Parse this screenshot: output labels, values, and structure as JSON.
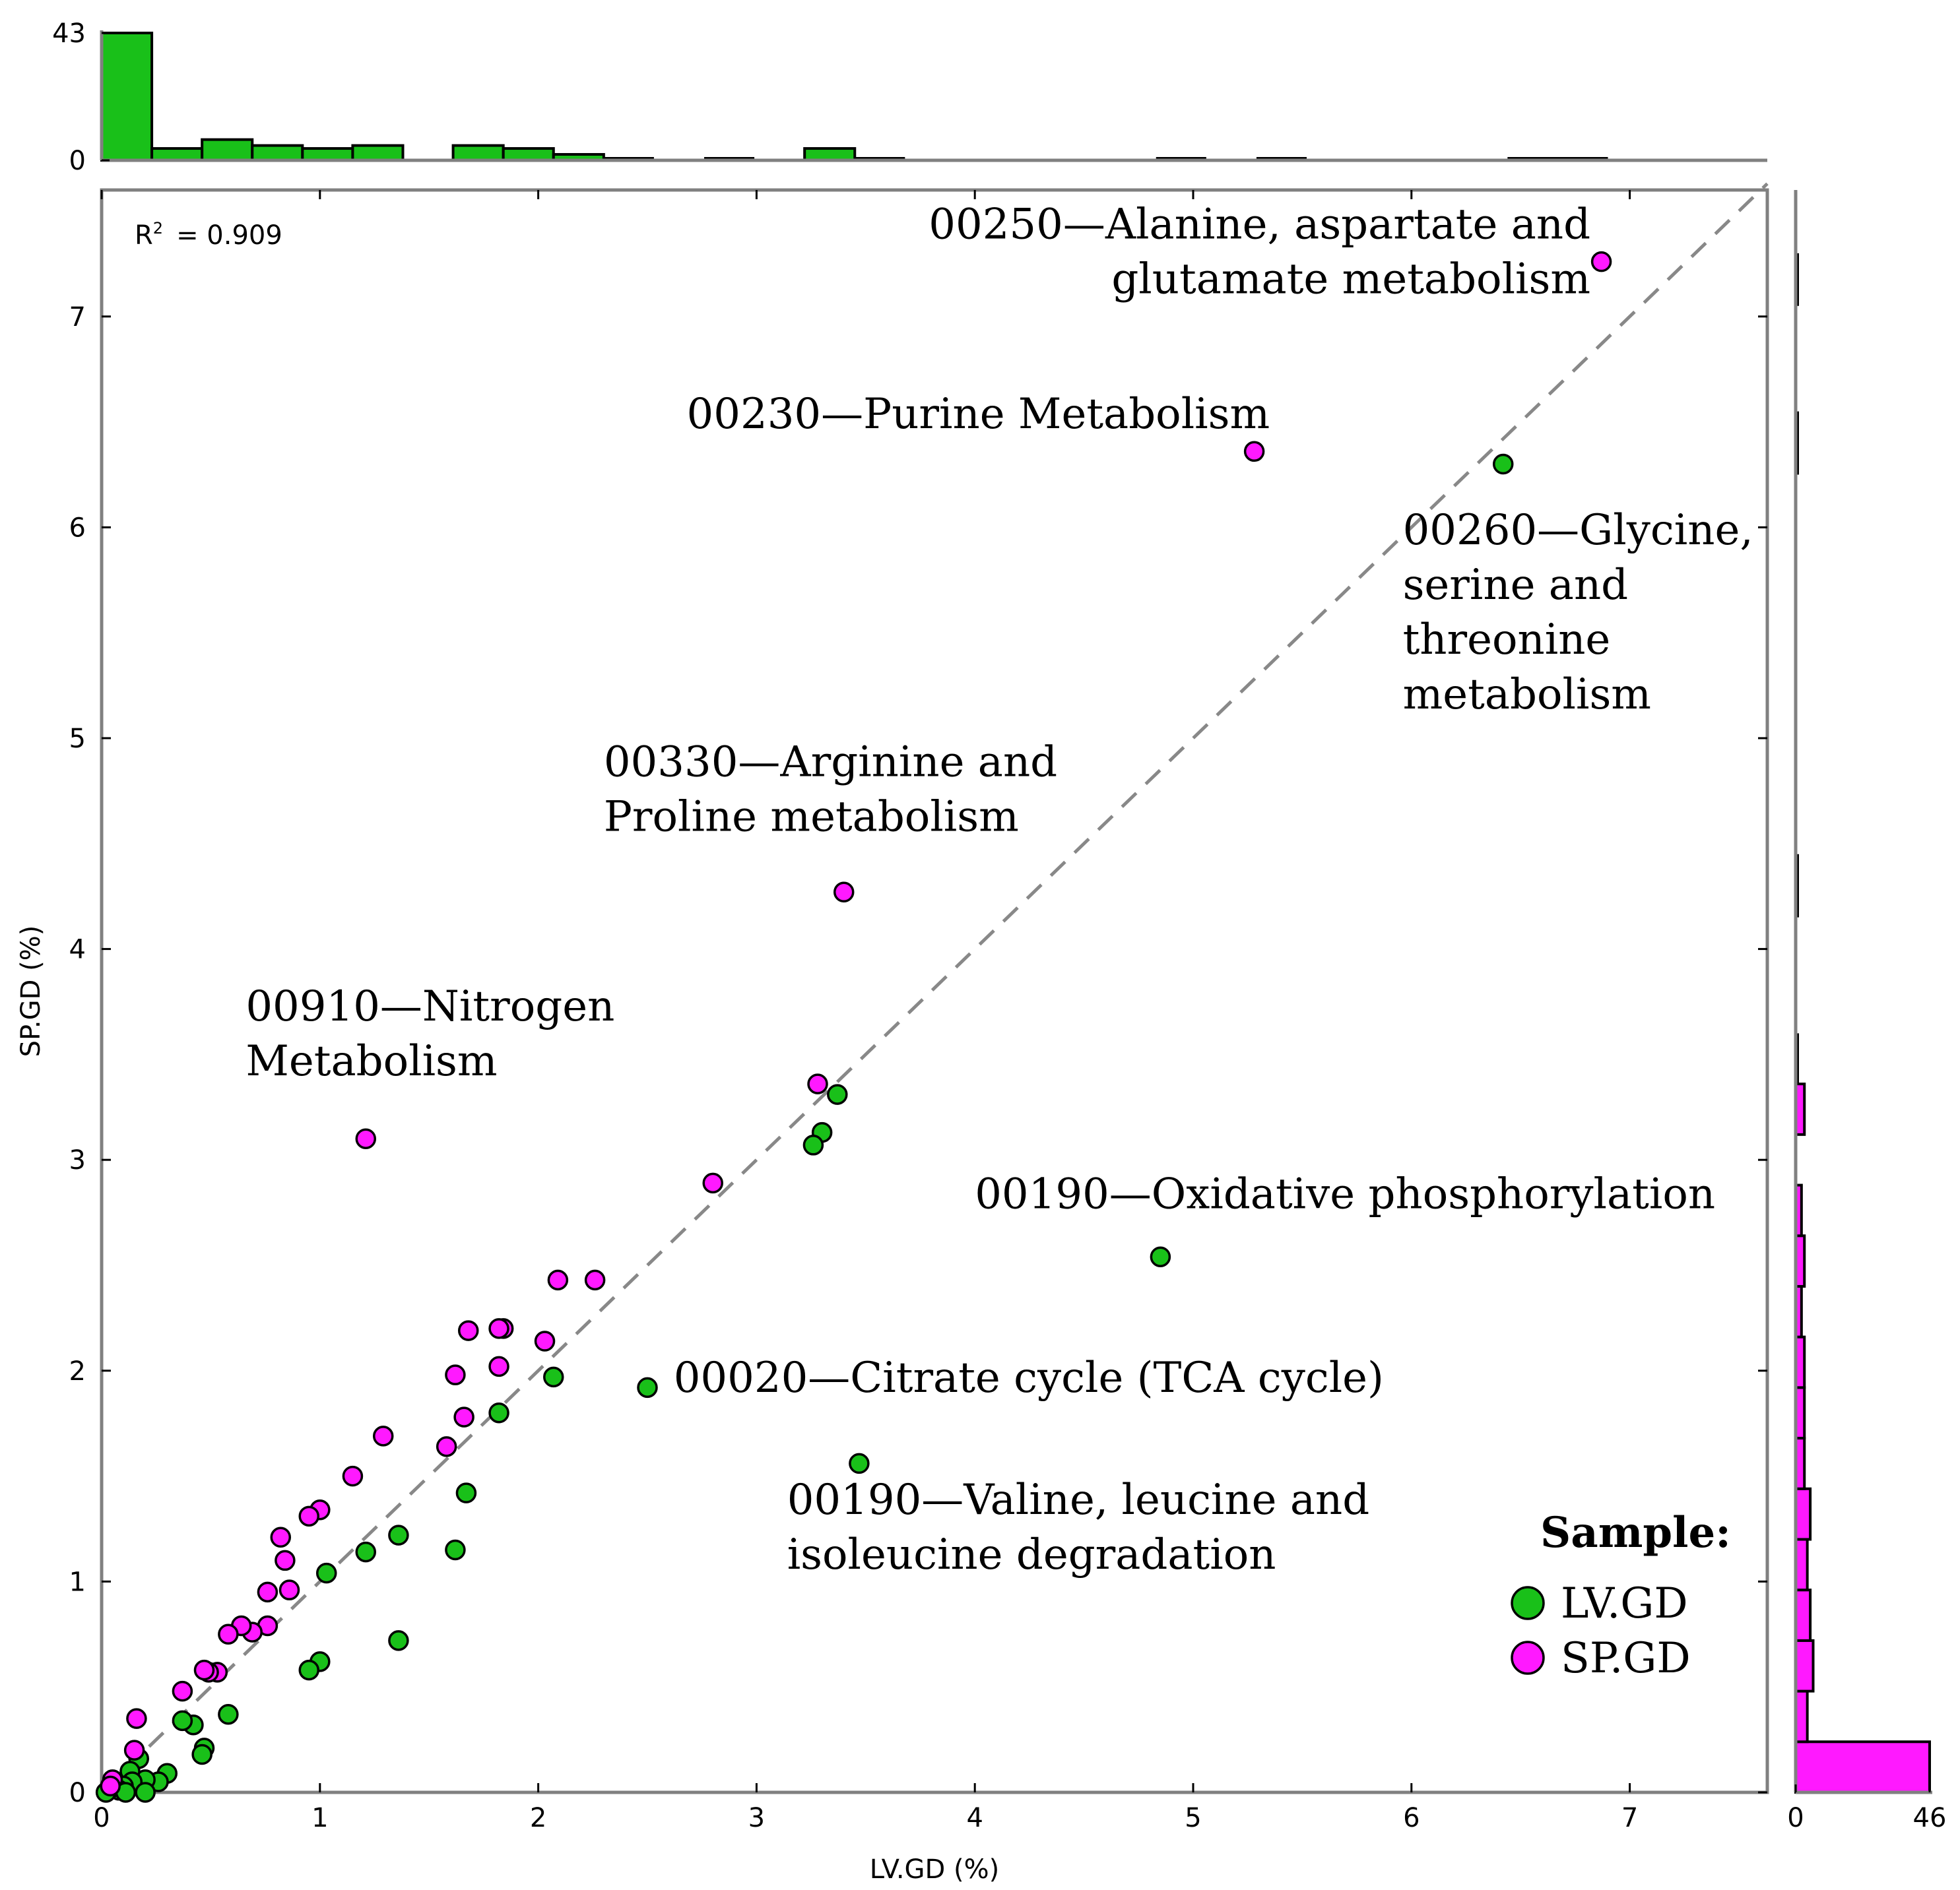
{
  "chart_data": {
    "type": "scatter",
    "xlabel": "LV.GD (%)",
    "ylabel": "SP.GD (%)",
    "xlim": [
      0,
      7.63
    ],
    "ylim": [
      0,
      7.6
    ],
    "x_ticks": [
      "0",
      "1",
      "2",
      "3",
      "4",
      "5",
      "6",
      "7"
    ],
    "y_ticks": [
      "0",
      "1",
      "2",
      "3",
      "4",
      "5",
      "6",
      "7"
    ],
    "r2_label": "R² = 0.909",
    "r2_prefix": "R",
    "r2_sup": "2",
    "r2_value": "= 0.909",
    "reference_line": "identity (y = x), dashed gray",
    "colors": {
      "LV.GD": "#19c019",
      "SP.GD": "#ff19ff",
      "reference": "#888888"
    },
    "legend": {
      "title": "Sample:",
      "position": "bottom-right",
      "entries": [
        "LV.GD",
        "SP.GD"
      ]
    },
    "series": [
      {
        "name": "LV.GD",
        "points": [
          [
            6.42,
            6.3
          ],
          [
            4.85,
            2.54
          ],
          [
            3.47,
            1.56
          ],
          [
            2.5,
            1.92
          ],
          [
            3.37,
            3.31
          ],
          [
            3.3,
            3.13
          ],
          [
            3.26,
            3.07
          ],
          [
            2.07,
            1.97
          ],
          [
            1.82,
            1.8
          ],
          [
            1.67,
            1.42
          ],
          [
            1.62,
            1.15
          ],
          [
            1.36,
            1.22
          ],
          [
            1.21,
            1.14
          ],
          [
            1.03,
            1.04
          ],
          [
            1.0,
            0.62
          ],
          [
            0.95,
            0.58
          ],
          [
            1.36,
            0.72
          ],
          [
            0.58,
            0.37
          ],
          [
            0.42,
            0.32
          ],
          [
            0.37,
            0.34
          ],
          [
            0.47,
            0.21
          ],
          [
            0.46,
            0.18
          ],
          [
            0.3,
            0.09
          ],
          [
            0.26,
            0.05
          ],
          [
            0.2,
            0.06
          ],
          [
            0.17,
            0.16
          ],
          [
            0.13,
            0.1
          ],
          [
            0.14,
            0.05
          ],
          [
            0.1,
            0.03
          ],
          [
            0.08,
            0.01
          ],
          [
            0.05,
            0.04
          ],
          [
            0.03,
            0.01
          ],
          [
            0.02,
            0.0
          ],
          [
            0.2,
            0.0
          ],
          [
            0.11,
            0.0
          ]
        ]
      },
      {
        "name": "SP.GD",
        "points": [
          [
            6.87,
            7.26
          ],
          [
            5.28,
            6.36
          ],
          [
            3.4,
            4.27
          ],
          [
            1.21,
            3.1
          ],
          [
            3.28,
            3.36
          ],
          [
            2.8,
            2.89
          ],
          [
            2.09,
            2.43
          ],
          [
            2.26,
            2.43
          ],
          [
            1.84,
            2.2
          ],
          [
            1.82,
            2.2
          ],
          [
            1.68,
            2.19
          ],
          [
            2.03,
            2.14
          ],
          [
            1.82,
            2.02
          ],
          [
            1.62,
            1.98
          ],
          [
            1.66,
            1.78
          ],
          [
            1.29,
            1.69
          ],
          [
            1.58,
            1.64
          ],
          [
            1.15,
            1.5
          ],
          [
            1.0,
            1.34
          ],
          [
            0.95,
            1.31
          ],
          [
            0.82,
            1.21
          ],
          [
            0.84,
            1.1
          ],
          [
            0.86,
            0.96
          ],
          [
            0.76,
            0.95
          ],
          [
            0.76,
            0.79
          ],
          [
            0.69,
            0.76
          ],
          [
            0.64,
            0.79
          ],
          [
            0.58,
            0.75
          ],
          [
            0.53,
            0.57
          ],
          [
            0.49,
            0.57
          ],
          [
            0.47,
            0.58
          ],
          [
            0.37,
            0.48
          ],
          [
            0.16,
            0.35
          ],
          [
            0.15,
            0.2
          ],
          [
            0.05,
            0.06
          ],
          [
            0.04,
            0.03
          ]
        ]
      }
    ],
    "annotations": [
      {
        "lines": [
          "00250—Alanine, aspartate and",
          "glutamate metabolism"
        ],
        "align": "end",
        "at": [
          6.82,
          7.37
        ]
      },
      {
        "lines": [
          "00230—Purine Metabolism"
        ],
        "align": "start",
        "at": [
          2.68,
          6.47
        ]
      },
      {
        "lines": [
          "00260—Glycine,",
          "serine and",
          "threonine",
          "metabolism"
        ],
        "align": "start",
        "at": [
          5.96,
          5.92
        ]
      },
      {
        "lines": [
          "00330—Arginine and",
          "Proline metabolism"
        ],
        "align": "start",
        "at": [
          2.3,
          4.82
        ]
      },
      {
        "lines": [
          "00910—Nitrogen",
          "Metabolism"
        ],
        "align": "start",
        "at": [
          0.66,
          3.66
        ]
      },
      {
        "lines": [
          "00190—Oxidative phosphorylation"
        ],
        "align": "start",
        "at": [
          4.0,
          2.77
        ]
      },
      {
        "lines": [
          "00020—Citrate cycle (TCA cycle)"
        ],
        "align": "start",
        "at": [
          2.62,
          1.9
        ]
      },
      {
        "lines": [
          "00190—Valine, leucine and",
          "isoleucine degradation"
        ],
        "align": "start",
        "at": [
          3.14,
          1.32
        ]
      }
    ],
    "top_histogram": {
      "series": "LV.GD",
      "ticks": [
        "0",
        "43"
      ],
      "max": 43,
      "bin_edges": [
        0,
        0.23,
        0.46,
        0.69,
        0.92,
        1.15,
        1.38,
        1.61,
        1.84,
        2.07,
        2.3,
        2.53,
        2.76,
        2.99,
        3.22,
        3.45,
        3.68,
        3.91,
        4.14,
        4.37,
        4.6,
        4.83,
        5.06,
        5.29,
        5.52,
        5.75,
        5.98,
        6.21,
        6.44,
        6.67,
        6.9
      ],
      "counts": [
        43,
        4,
        7,
        5,
        4,
        5,
        0,
        5,
        4,
        2,
        0,
        0,
        0,
        0,
        4,
        0,
        0,
        0,
        0,
        0,
        0,
        0,
        0,
        0,
        0,
        0,
        0,
        0,
        0,
        0
      ],
      "small_marks": [
        [
          2.3,
          2.53
        ],
        [
          2.76,
          2.99
        ],
        [
          3.45,
          3.68
        ],
        [
          4.83,
          5.06
        ],
        [
          5.29,
          5.52
        ],
        [
          6.44,
          6.9
        ]
      ]
    },
    "right_histogram": {
      "series": "SP.GD",
      "ticks": [
        "0",
        "46"
      ],
      "max": 46,
      "bin_edges": [
        0,
        0.24,
        0.48,
        0.72,
        0.96,
        1.2,
        1.44,
        1.68,
        1.92,
        2.16,
        2.4,
        2.64,
        2.88,
        3.12,
        3.36
      ],
      "counts": [
        46,
        4,
        6,
        5,
        4,
        5,
        3,
        3,
        3,
        2,
        3,
        2,
        0,
        3
      ],
      "small_marks": [
        [
          3.36,
          3.6
        ],
        [
          4.15,
          4.45
        ],
        [
          6.25,
          6.55
        ],
        [
          7.05,
          7.3
        ]
      ]
    }
  }
}
